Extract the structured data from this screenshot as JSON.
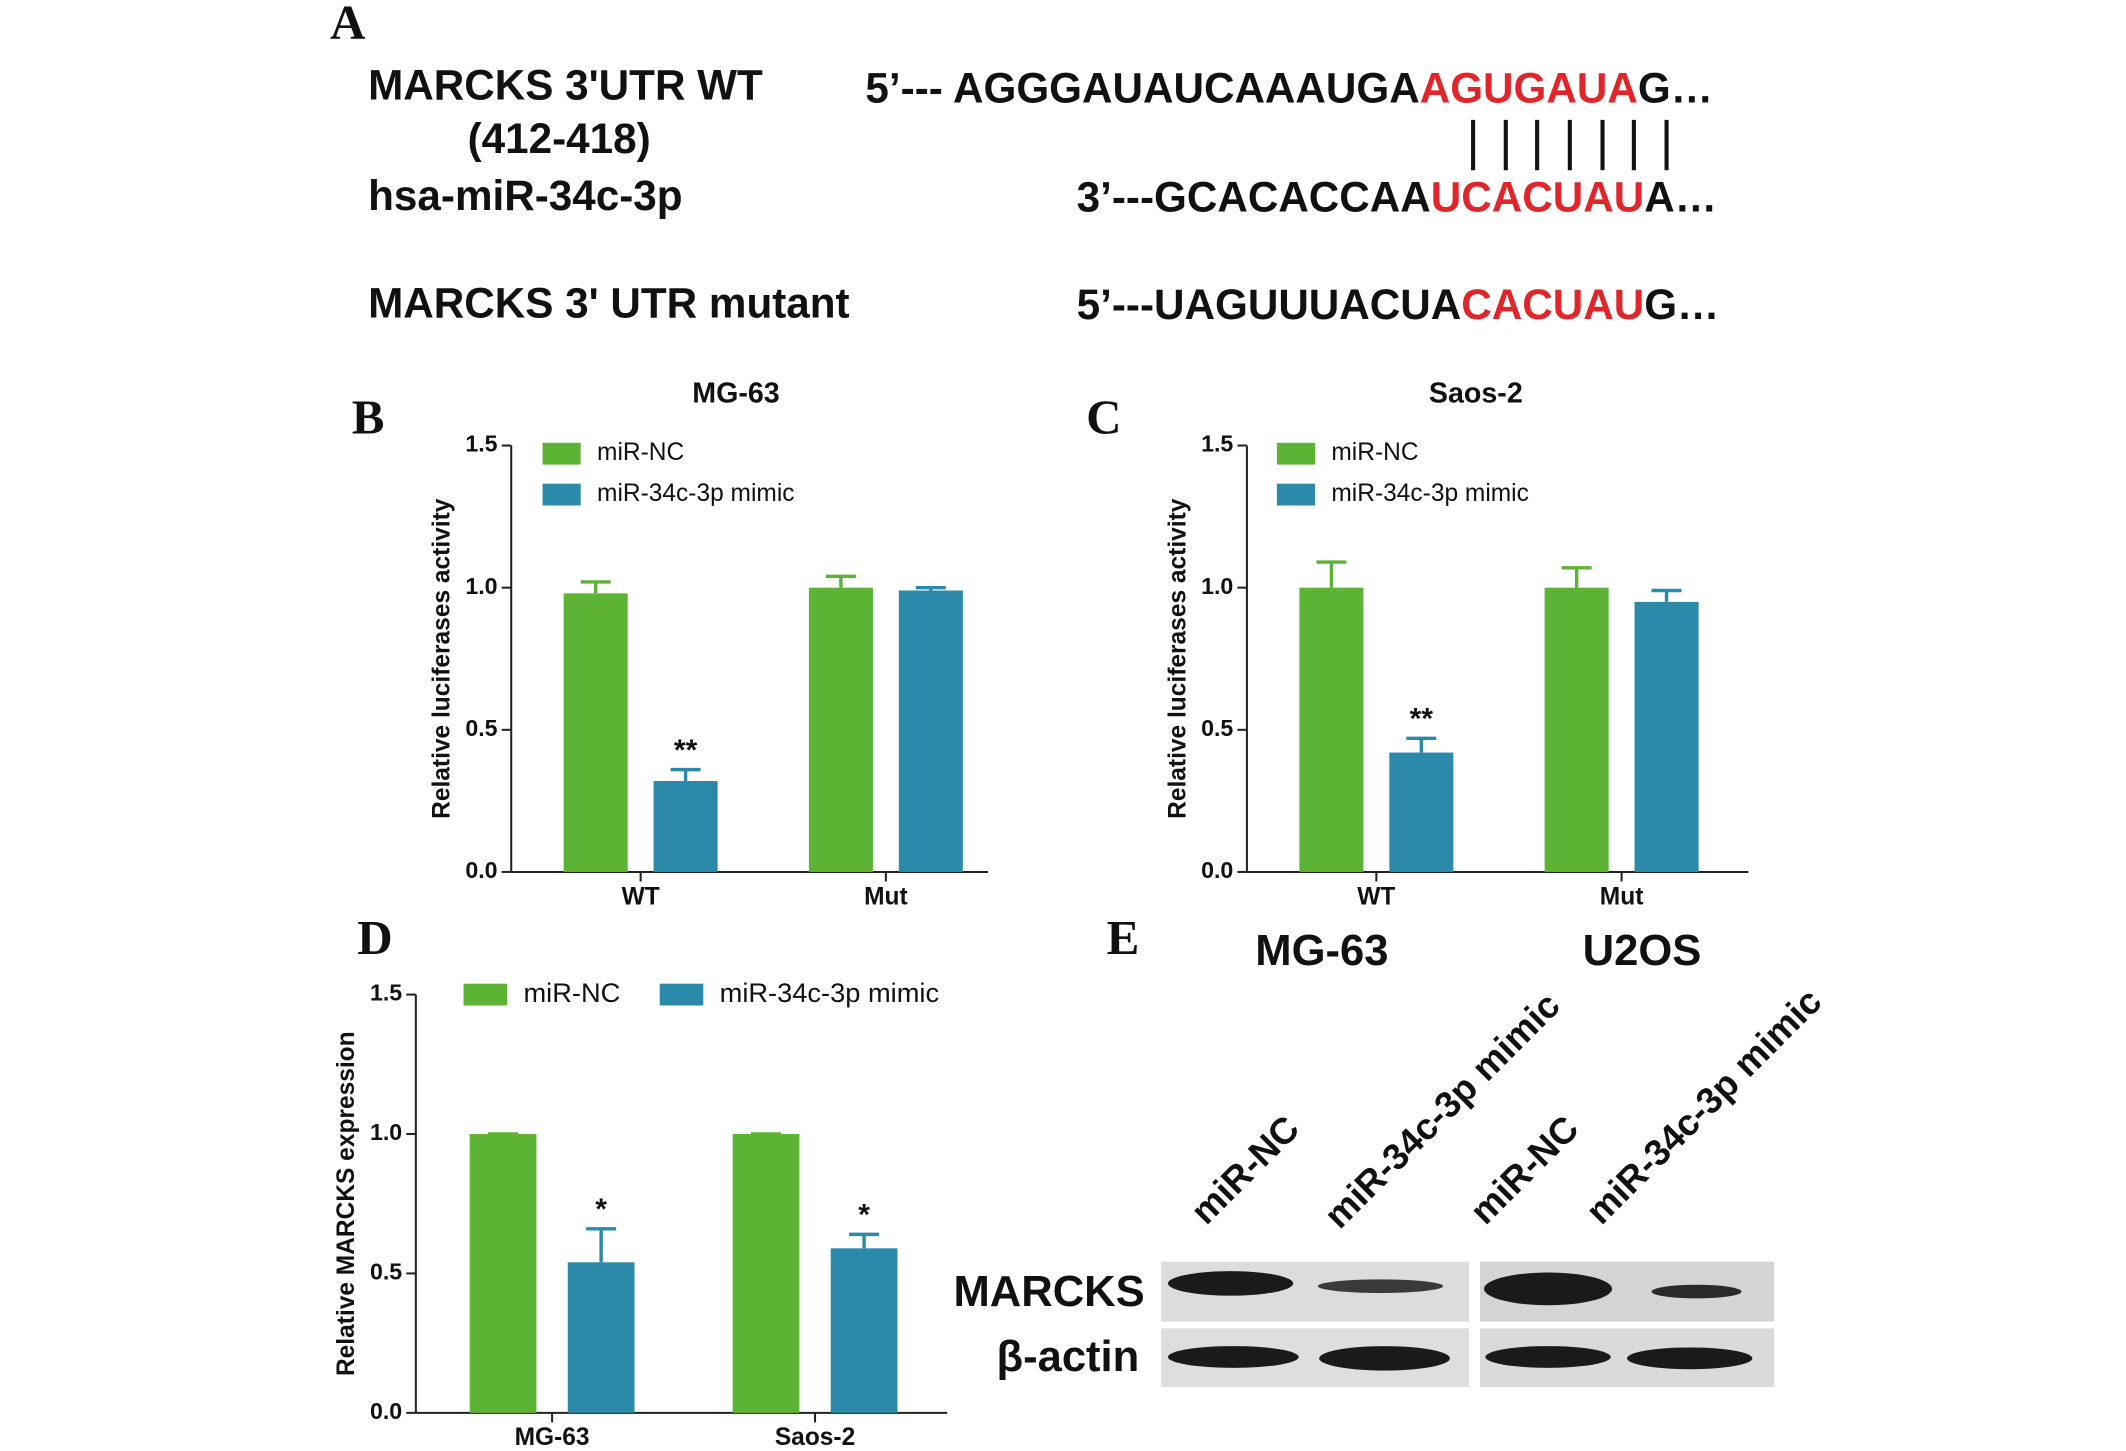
{
  "panel_a": {
    "label": "A",
    "wt_name": "MARCKS 3'UTR WT",
    "wt_position": "(412-418)",
    "wt_sequence": [
      "5’--- AGGGAUAUCAAAUGA",
      "AGUGAUA",
      "G…"
    ],
    "mirna_name": "hsa-miR-34c-3p",
    "mirna_sequence": [
      "3’---GCACACCAA",
      "UCACUAU",
      "A…"
    ],
    "mutant_name": "MARCKS 3' UTR mutant",
    "mutant_sequence": [
      "5’---UAGUUUACUA",
      "CACUAU",
      "G…"
    ]
  },
  "chart_data": [
    {
      "type": "bar",
      "panel_label": "B",
      "title": "MG-63",
      "y_label": "Relative luciferases activity",
      "categories": [
        "WT",
        "Mut"
      ],
      "series": [
        {
          "name": "miR-NC",
          "color": "#5db334",
          "values": [
            0.98,
            1.0
          ],
          "errors": [
            0.04,
            0.04
          ],
          "significance": [
            null,
            null
          ]
        },
        {
          "name": "miR-34c-3p mimic",
          "color": "#2b8aa9",
          "values": [
            0.32,
            0.99
          ],
          "errors": [
            0.04,
            0.01
          ],
          "significance": [
            "**",
            null
          ]
        }
      ],
      "ylim": [
        0,
        1.5
      ],
      "yticks": [
        {
          "value": 0,
          "label": "0.0"
        },
        {
          "value": 0.5,
          "label": "0.5"
        },
        {
          "value": 1,
          "label": "1.0"
        },
        {
          "value": 1.5,
          "label": "1.5"
        }
      ],
      "legend": "upper left"
    },
    {
      "type": "bar",
      "panel_label": "C",
      "title": "Saos-2",
      "y_label": "Relative luciferases activity",
      "categories": [
        "WT",
        "Mut"
      ],
      "series": [
        {
          "name": "miR-NC",
          "color": "#5db334",
          "values": [
            1.0,
            1.0
          ],
          "errors": [
            0.09,
            0.07
          ],
          "significance": [
            null,
            null
          ]
        },
        {
          "name": "miR-34c-3p mimic",
          "color": "#2b8aa9",
          "values": [
            0.42,
            0.95
          ],
          "errors": [
            0.05,
            0.04
          ],
          "significance": [
            "**",
            null
          ]
        }
      ],
      "ylim": [
        0,
        1.5
      ],
      "yticks": [
        {
          "value": 0,
          "label": "0.0"
        },
        {
          "value": 0.5,
          "label": "0.5"
        },
        {
          "value": 1,
          "label": "1.0"
        },
        {
          "value": 1.5,
          "label": "1.5"
        }
      ],
      "legend": "upper left"
    },
    {
      "type": "bar",
      "panel_label": "D",
      "y_label": "Relative MARCKS expression",
      "categories": [
        "MG-63",
        "Saos-2"
      ],
      "series": [
        {
          "name": "miR-NC",
          "color": "#5db334",
          "values": [
            1.0,
            1.0
          ],
          "errors": [
            0,
            0
          ],
          "significance": [
            null,
            null
          ]
        },
        {
          "name": "miR-34c-3p mimic",
          "color": "#2b8aa9",
          "values": [
            0.54,
            0.59
          ],
          "errors": [
            0.12,
            0.05
          ],
          "significance": [
            "*",
            "*"
          ]
        }
      ],
      "ylim": [
        0,
        1.5
      ],
      "yticks": [
        {
          "value": 0,
          "label": "0.0"
        },
        {
          "value": 0.5,
          "label": "0.5"
        },
        {
          "value": 1,
          "label": "1.0"
        },
        {
          "value": 1.5,
          "label": "1.5"
        }
      ],
      "legend": "upper left"
    }
  ],
  "panel_e": {
    "label": "E",
    "cell_lines": [
      "MG-63",
      "U2OS"
    ],
    "lanes": [
      "miR-NC",
      "miR-34c-3p mimic",
      "miR-NC",
      "miR-34c-3p mimic"
    ],
    "proteins": [
      "MARCKS",
      "β-actin"
    ]
  }
}
